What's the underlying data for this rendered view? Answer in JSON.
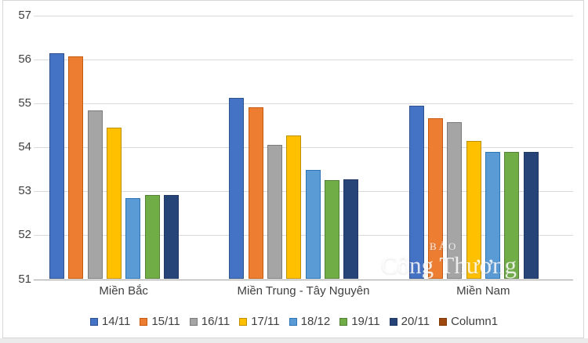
{
  "watermark": {
    "line1": "BÁO",
    "line2": "Công Thương"
  },
  "chart_data": {
    "type": "bar",
    "title": "",
    "categories": [
      "Miền Bắc",
      "Miền Trung - Tây Nguyên",
      "Miền Nam"
    ],
    "series": [
      {
        "name": "14/11",
        "color": "#4472C4",
        "border_color": "#2F528F",
        "values": [
          56.15,
          55.12,
          54.95
        ]
      },
      {
        "name": "15/11",
        "color": "#ED7D31",
        "border_color": "#C55A11",
        "values": [
          56.07,
          54.91,
          54.67
        ]
      },
      {
        "name": "16/11",
        "color": "#A5A5A5",
        "border_color": "#7B7B7B",
        "values": [
          54.85,
          54.06,
          54.57
        ]
      },
      {
        "name": "17/11",
        "color": "#FFC000",
        "border_color": "#BF8F00",
        "values": [
          54.45,
          54.28,
          54.15
        ]
      },
      {
        "name": "18/12",
        "color": "#5B9BD5",
        "border_color": "#2E75B6",
        "values": [
          52.85,
          53.49,
          53.9
        ]
      },
      {
        "name": "19/11",
        "color": "#70AD47",
        "border_color": "#538135",
        "values": [
          52.92,
          53.26,
          53.9
        ]
      },
      {
        "name": "20/11",
        "color": "#264478",
        "border_color": "#1F3864",
        "values": [
          52.92,
          53.27,
          53.9
        ]
      },
      {
        "name": "Column1",
        "color": "#9E480E",
        "border_color": "#823B0B",
        "values": [
          null,
          null,
          null
        ]
      }
    ],
    "ylim": [
      51,
      57
    ],
    "ytick_step": 1,
    "yticks": [
      "57",
      "56",
      "55",
      "54",
      "53",
      "52",
      "51"
    ],
    "grid": true,
    "gridline_color": "#d9d9d9",
    "axis_line_color": "#9f9f9f",
    "legend_position": "bottom"
  }
}
